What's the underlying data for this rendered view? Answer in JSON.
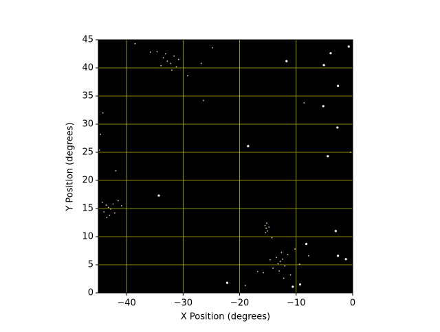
{
  "chart_data": {
    "type": "scatter",
    "x_label": "X Position (degrees)",
    "y_label": "Y Position (degrees)",
    "xlim": [
      -45,
      0
    ],
    "ylim": [
      0,
      45
    ],
    "xticks": [
      {
        "value": -40,
        "label": "−40"
      },
      {
        "value": -30,
        "label": "−30"
      },
      {
        "value": -20,
        "label": "−20"
      },
      {
        "value": -10,
        "label": "−10"
      },
      0
    ],
    "yticks": [
      0,
      5,
      10,
      15,
      20,
      25,
      30,
      35,
      40,
      45
    ],
    "grid": true,
    "grid_color": "#b8b800",
    "background": "#000000",
    "series": [
      {
        "color": "#ffffff",
        "marker_size": 1.6,
        "x": [
          -3.9,
          -0.7,
          -11.7,
          -5.2,
          -2.6,
          -4.4,
          -8.2,
          -2.6,
          -1.2,
          -9.3,
          -10.6,
          -22.2,
          -34.3,
          -18.5,
          -3.0,
          -5.1,
          -2.7
        ],
        "y": [
          42.6,
          43.8,
          41.2,
          33.2,
          36.8,
          24.3,
          8.7,
          6.6,
          6.0,
          1.5,
          1.1,
          1.8,
          17.3,
          26.1,
          11.0,
          40.5,
          29.4
        ]
      },
      {
        "color": "#e8d2a8",
        "marker_size": 0.9,
        "x": [
          -32.8,
          -32.2,
          -33.5,
          -31.6,
          -33.9,
          -32.0,
          -34.6,
          -31.2,
          -33.1,
          -30.8,
          -35.8,
          -38.5,
          -29.2,
          -26.8,
          -24.8,
          -43.2,
          -42.8,
          -43.6,
          -42.4,
          -44.0,
          -43.0,
          -41.5,
          -44.3,
          -42.1,
          -40.9,
          -43.5,
          -15.3,
          -15.1,
          -15.5,
          -15.2,
          -15.4,
          -14.8,
          -12.8,
          -13.2,
          -12.4,
          -13.5,
          -12.0,
          -14.1,
          -11.5,
          -13.0,
          -12.6,
          -14.6,
          -11.0,
          -10.2,
          -15.8,
          -9.4,
          -12.2,
          -44.6,
          -44.2,
          -41.9,
          -26.4,
          -8.6,
          -14.3,
          -7.8,
          -16.8,
          -0.4,
          -44.8,
          -19.0
        ],
        "y": [
          41.2,
          40.8,
          41.8,
          42.1,
          40.4,
          39.6,
          42.9,
          40.2,
          42.5,
          41.5,
          42.8,
          44.3,
          38.6,
          40.8,
          43.6,
          15.2,
          14.9,
          15.6,
          15.8,
          14.4,
          13.8,
          16.4,
          16.1,
          14.2,
          15.5,
          13.4,
          11.5,
          11.0,
          12.0,
          12.4,
          10.7,
          11.7,
          5.6,
          5.2,
          6.0,
          6.3,
          4.8,
          4.4,
          6.8,
          3.9,
          7.2,
          5.9,
          3.2,
          7.8,
          3.6,
          5.1,
          2.6,
          28.2,
          32.0,
          21.7,
          34.2,
          33.8,
          9.8,
          6.6,
          3.8,
          25.0,
          25.4,
          1.3
        ]
      }
    ]
  }
}
